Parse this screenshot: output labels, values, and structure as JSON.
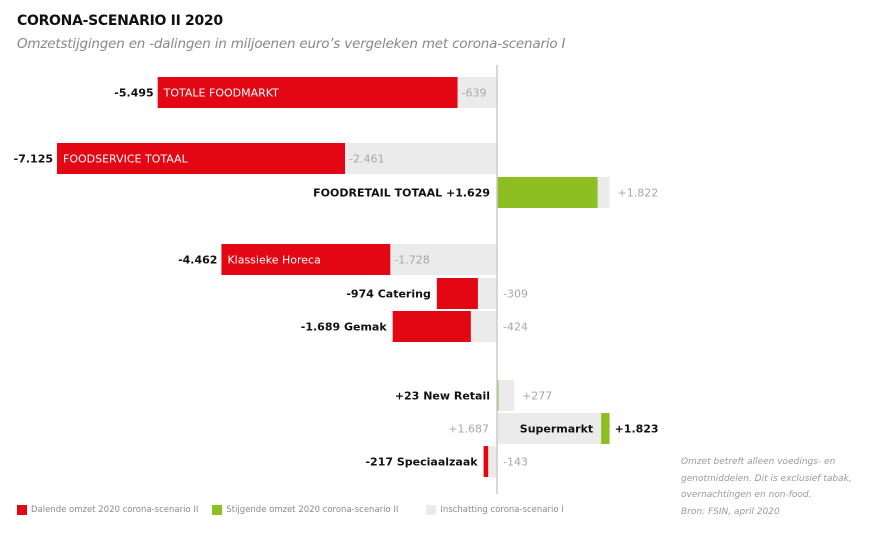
{
  "title": "CORONA-SCENARIO II 2020",
  "subtitle": "Omzetstijgingen en -dalingen in miljoenen euro’s vergeleken met corona-scenario I",
  "colors": {
    "decline": "#E30613",
    "increase": "#8DBE22",
    "scenario1": "#EBEBEB",
    "axis": "#CCCCCC"
  },
  "chart_data": {
    "type": "bar",
    "orientation": "horizontal",
    "title": "CORONA-SCENARIO II 2020",
    "subtitle": "Omzetstijgingen en -dalingen in miljoenen euro’s vergeleken met corona-scenario I",
    "unit": "miljoenen euro",
    "categories": [
      "TOTALE FOODMARKT",
      "FOODSERVICE TOTAAL",
      "FOODRETAIL TOTAAL",
      "Klassieke Horeca",
      "Catering",
      "Gemak",
      "New Retail",
      "Supermarkt",
      "Speciaalzaak"
    ],
    "series": [
      {
        "name": "Corona-scenario II",
        "values": [
          -5495,
          -7125,
          1629,
          -4462,
          -974,
          -1689,
          23,
          1823,
          -217
        ],
        "labels": [
          "-5.495",
          "-7.125",
          "+1.629",
          "-4.462",
          "-974",
          "-1.689",
          "+23",
          "+1.823",
          "-217"
        ]
      },
      {
        "name": "Inschatting corona-scenario I",
        "values": [
          -639,
          -2461,
          1822,
          -1728,
          -309,
          -424,
          277,
          1687,
          -143
        ],
        "labels": [
          "-639",
          "-2.461",
          "+1.822",
          "-1.728",
          "-309",
          "-424",
          "+277",
          "+1.687",
          "-143"
        ]
      }
    ],
    "legend": [
      {
        "label": "Dalende omzet 2020 corona-scenario II",
        "color": "#E30613"
      },
      {
        "label": "Stijgende omzet 2020 corona-scenario II",
        "color": "#8DBE22"
      },
      {
        "label": "Inschatting corona-scenario I",
        "color": "#EBEBEB"
      }
    ],
    "legend_position": "bottom-left",
    "grid": false
  },
  "note": {
    "lines": [
      "Omzet betreft alleen voedings- en",
      "genotmiddelen. Dit is exclusief tabak,",
      "overnachtingen en non-food.",
      "Bron: FSIN, april 2020"
    ]
  }
}
